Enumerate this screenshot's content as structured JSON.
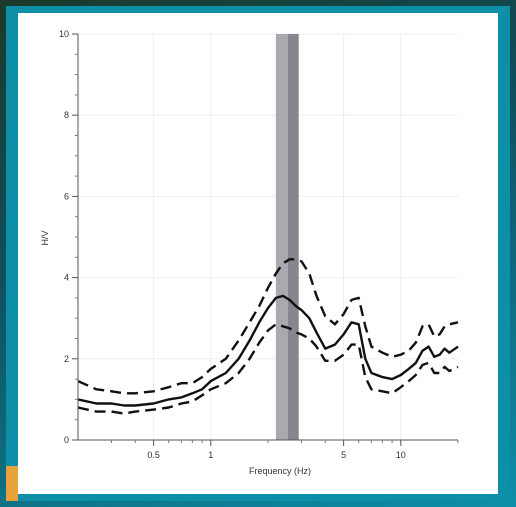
{
  "colors": {
    "frame": "#0d8fa8",
    "panel": "#ffffff",
    "band_outer": "#a9a9b0",
    "band_inner": "#86868e",
    "curve": "#111111",
    "grid": "#eeeeee",
    "accent_strip": "#e8a23c"
  },
  "chart_data": {
    "type": "line",
    "title": "",
    "xlabel": "Frequency (Hz)",
    "ylabel": "H/V",
    "x_scale": "log",
    "xlim": [
      0.2,
      20
    ],
    "ylim": [
      0,
      10
    ],
    "x_ticks": [
      {
        "value": 0.5,
        "label": "0.5"
      },
      {
        "value": 1,
        "label": "1"
      },
      {
        "value": 5,
        "label": "5"
      },
      {
        "value": 10,
        "label": "10"
      }
    ],
    "y_ticks": [
      {
        "value": 0,
        "label": "0"
      },
      {
        "value": 2,
        "label": "2"
      },
      {
        "value": 4,
        "label": "4"
      },
      {
        "value": 6,
        "label": "6"
      },
      {
        "value": 8,
        "label": "8"
      },
      {
        "value": 10,
        "label": "10"
      }
    ],
    "grid": true,
    "highlight_band": {
      "x_start": 2.2,
      "x_end": 2.9,
      "inner_start": 2.55,
      "inner_end": 2.9
    },
    "series": [
      {
        "style": "dashed",
        "x": [
          0.2,
          0.25,
          0.3,
          0.35,
          0.4,
          0.5,
          0.6,
          0.7,
          0.8,
          0.9,
          1.0,
          1.2,
          1.4,
          1.6,
          1.8,
          2.0,
          2.2,
          2.4,
          2.6,
          2.8,
          3.0,
          3.3,
          3.6,
          4.0,
          4.5,
          5.0,
          5.5,
          6.0,
          6.5,
          7.0,
          8.0,
          9.0,
          10.0,
          11.0,
          12.0,
          13.0,
          14.0,
          15.0,
          16.0,
          17.0,
          18.0,
          20.0
        ],
        "values": [
          1.45,
          1.25,
          1.2,
          1.15,
          1.15,
          1.2,
          1.3,
          1.4,
          1.4,
          1.55,
          1.75,
          2.0,
          2.45,
          2.9,
          3.3,
          3.75,
          4.1,
          4.35,
          4.45,
          4.45,
          4.4,
          4.1,
          3.55,
          3.05,
          2.85,
          3.1,
          3.45,
          3.5,
          2.8,
          2.3,
          2.15,
          2.05,
          2.1,
          2.2,
          2.4,
          2.8,
          2.85,
          2.55,
          2.6,
          2.8,
          2.85,
          2.9
        ]
      },
      {
        "style": "solid",
        "x": [
          0.2,
          0.25,
          0.3,
          0.35,
          0.4,
          0.5,
          0.6,
          0.7,
          0.8,
          0.9,
          1.0,
          1.2,
          1.4,
          1.6,
          1.8,
          2.0,
          2.2,
          2.4,
          2.6,
          2.8,
          3.0,
          3.3,
          3.6,
          4.0,
          4.5,
          5.0,
          5.5,
          6.0,
          6.5,
          7.0,
          8.0,
          9.0,
          10.0,
          11.0,
          12.0,
          13.0,
          14.0,
          15.0,
          16.0,
          17.0,
          18.0,
          20.0
        ],
        "values": [
          1.0,
          0.9,
          0.9,
          0.85,
          0.85,
          0.9,
          1.0,
          1.05,
          1.15,
          1.25,
          1.45,
          1.65,
          2.0,
          2.45,
          2.9,
          3.25,
          3.5,
          3.55,
          3.45,
          3.3,
          3.2,
          3.0,
          2.65,
          2.25,
          2.35,
          2.6,
          2.9,
          2.85,
          2.0,
          1.65,
          1.55,
          1.5,
          1.6,
          1.75,
          1.9,
          2.2,
          2.3,
          2.05,
          2.1,
          2.25,
          2.15,
          2.3
        ]
      },
      {
        "style": "dashed",
        "x": [
          0.2,
          0.25,
          0.3,
          0.35,
          0.4,
          0.5,
          0.6,
          0.7,
          0.8,
          0.9,
          1.0,
          1.2,
          1.4,
          1.6,
          1.8,
          2.0,
          2.2,
          2.4,
          2.6,
          2.8,
          3.0,
          3.3,
          3.6,
          4.0,
          4.5,
          5.0,
          5.5,
          6.0,
          6.5,
          7.0,
          8.0,
          9.0,
          10.0,
          11.0,
          12.0,
          13.0,
          14.0,
          15.0,
          16.0,
          17.0,
          18.0,
          20.0
        ],
        "values": [
          0.8,
          0.7,
          0.7,
          0.65,
          0.7,
          0.75,
          0.8,
          0.9,
          0.95,
          1.1,
          1.25,
          1.4,
          1.65,
          2.0,
          2.4,
          2.7,
          2.85,
          2.8,
          2.75,
          2.65,
          2.6,
          2.5,
          2.3,
          1.95,
          1.95,
          2.1,
          2.35,
          2.35,
          1.55,
          1.25,
          1.2,
          1.15,
          1.3,
          1.45,
          1.6,
          1.85,
          1.9,
          1.65,
          1.65,
          1.8,
          1.7,
          1.8
        ]
      }
    ]
  }
}
